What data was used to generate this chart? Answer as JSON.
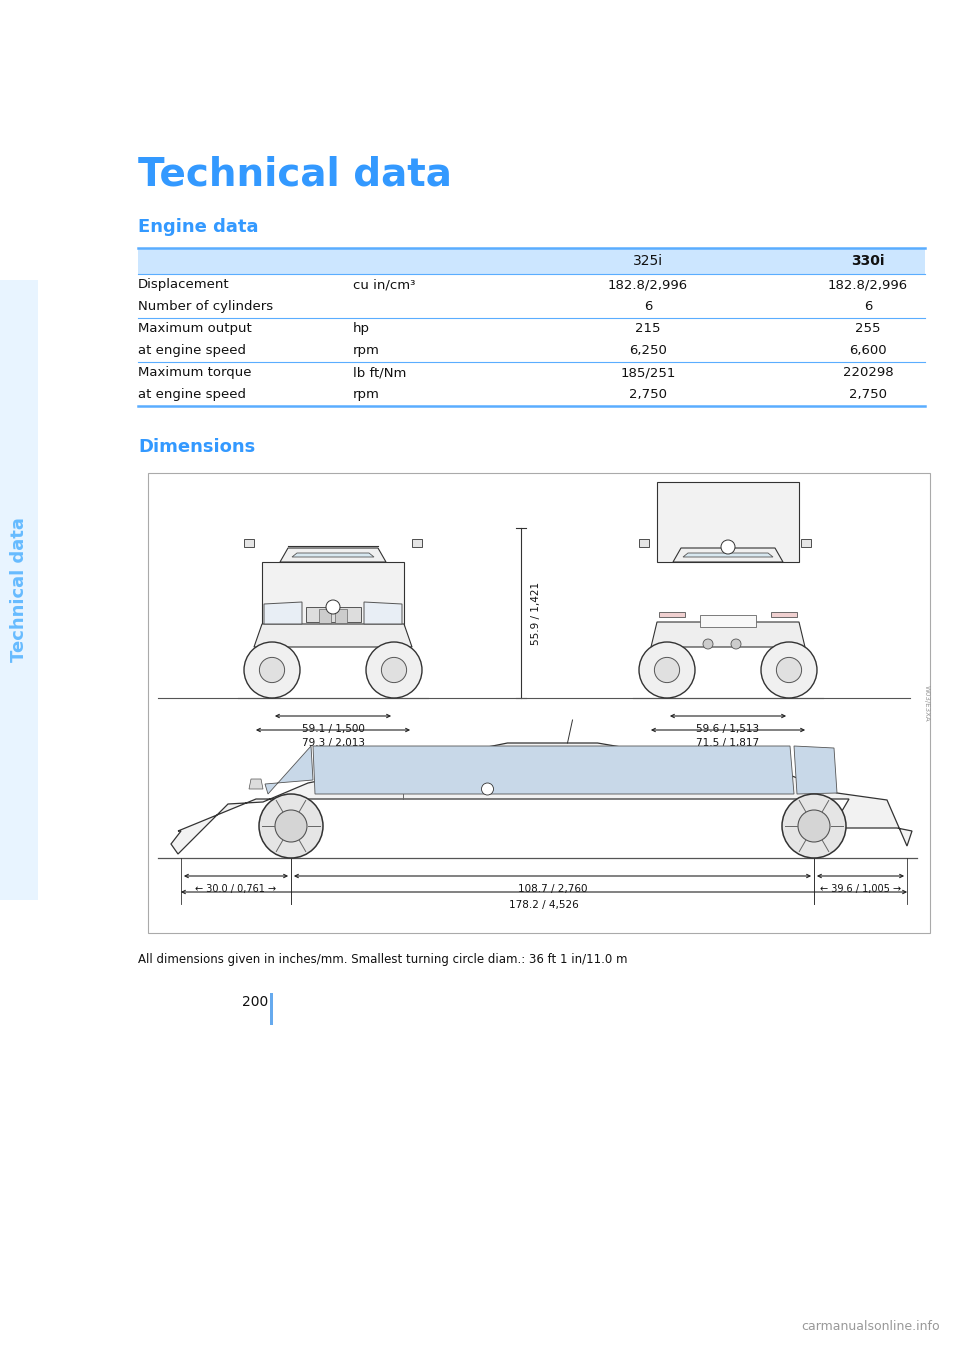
{
  "title": "Technical data",
  "sidebar_text": "Technical data",
  "title_color": "#3399ff",
  "sidebar_color": "#99ccff",
  "section1_title": "Engine data",
  "section2_title": "Dimensions",
  "section_title_color": "#3399ff",
  "table_header_bg": "#cce6ff",
  "table_line_color": "#5aadff",
  "col_headers": [
    "",
    "",
    "325i",
    "330i"
  ],
  "table_rows": [
    [
      "Displacement",
      "cu in/cm³",
      "182.8/2,996",
      "182.8/2,996"
    ],
    [
      "Number of cylinders",
      "",
      "6",
      "6"
    ],
    [
      "Maximum output",
      "hp",
      "215",
      "255"
    ],
    [
      "at engine speed",
      "rpm",
      "6,250",
      "6,600"
    ],
    [
      "Maximum torque",
      "lb ft/Nm",
      "185/251",
      "220298"
    ],
    [
      "at engine speed",
      "rpm",
      "2,750",
      "2,750"
    ]
  ],
  "footnote": "All dimensions given in inches/mm. Smallest turning circle diam.: 36 ft 1 in/11.0 m",
  "page_number": "200",
  "dim_front_track": "59.1 / 1,500",
  "dim_front_outer": "79.3 / 2,013",
  "dim_rear_track": "59.6 / 1,513",
  "dim_rear_outer": "71.5 / 1,817",
  "dim_height": "55.9 / 1,421",
  "dim_front_overhang": "30.0 / 0,761",
  "dim_wheelbase": "108.7 / 2,760",
  "dim_rear_overhang": "39.6 / 1,005",
  "dim_total_length": "178.2 / 4,526",
  "watermark": "carmanualsonline.info",
  "bg_color": "#ffffff",
  "text_color": "#111111"
}
